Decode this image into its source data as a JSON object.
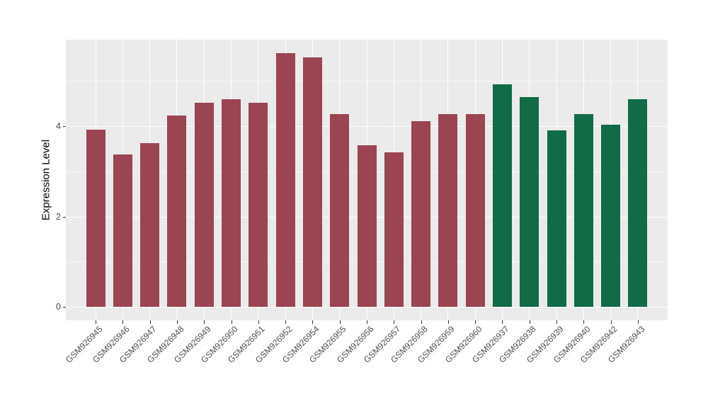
{
  "figure": {
    "background_color": "#FFFFFF"
  },
  "chart_data": {
    "type": "bar",
    "title": "",
    "xlabel": "",
    "ylabel": "Expression Level",
    "categories": [
      "GSM926945",
      "GSM926946",
      "GSM926947",
      "GSM926948",
      "GSM926949",
      "GSM926950",
      "GSM926951",
      "GSM926952",
      "GSM926954",
      "GSM926955",
      "GSM926956",
      "GSM926957",
      "GSM926958",
      "GSM926959",
      "GSM926960",
      "GSM926937",
      "GSM926938",
      "GSM926939",
      "GSM926940",
      "GSM926942",
      "GSM926943"
    ],
    "values": [
      3.92,
      3.37,
      3.62,
      4.23,
      4.51,
      4.6,
      4.51,
      5.62,
      5.52,
      4.27,
      3.57,
      3.42,
      4.11,
      4.27,
      4.27,
      4.93,
      4.65,
      3.91,
      4.27,
      4.03,
      4.59
    ],
    "bar_colors": [
      "#9B4452",
      "#9B4452",
      "#9B4452",
      "#9B4452",
      "#9B4452",
      "#9B4452",
      "#9B4452",
      "#9B4452",
      "#9B4452",
      "#9B4452",
      "#9B4452",
      "#9B4452",
      "#9B4452",
      "#9B4452",
      "#9B4452",
      "#116B46",
      "#116B46",
      "#116B46",
      "#116B46",
      "#116B46",
      "#116B46"
    ],
    "ylim": [
      0,
      5.91
    ],
    "yticks": [
      "0",
      "2",
      "4"
    ],
    "ytick_values": [
      0,
      2,
      4
    ],
    "minor_ytick_values": [
      1,
      3,
      5
    ],
    "grid": true,
    "legend_position": "none",
    "panel_background": "#EBEBEB",
    "major_grid_color": "#FFFFFF",
    "minor_grid_opacity": 0.55,
    "axis_text_color": "#4D4D4D",
    "axis_title_color": "#000000",
    "tick_mark_color": "#333333"
  }
}
